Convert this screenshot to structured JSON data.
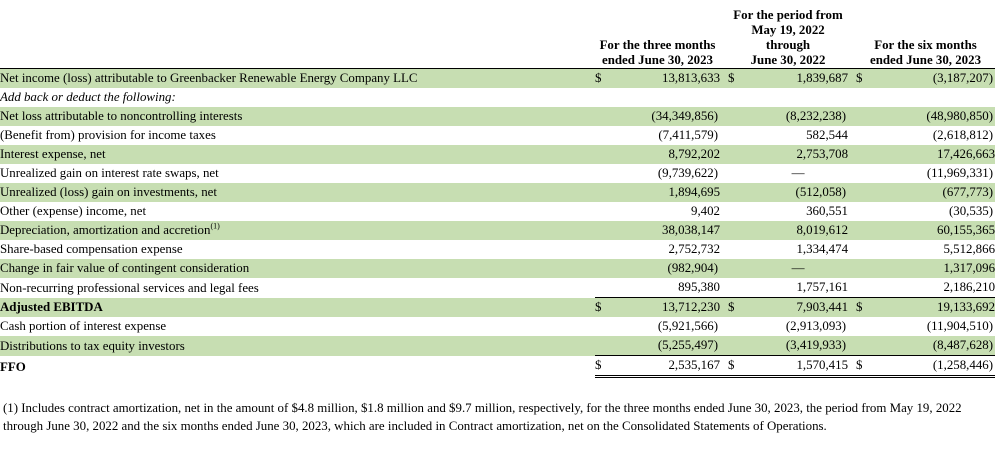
{
  "table": {
    "currency_symbol": "$",
    "columns": [
      {
        "label": "For the three months\nended June 30, 2023"
      },
      {
        "label": "For the period from\nMay 19, 2022 through\nJune 30, 2022"
      },
      {
        "label": "For the six months\nended June 30, 2023"
      }
    ],
    "rows": [
      {
        "label": "Net income (loss) attributable to Greenbacker Renewable Energy Company LLC",
        "dollar": true,
        "values": [
          "13,813,633",
          "1,839,687",
          "(3,187,207)"
        ]
      },
      {
        "label": "Add back or deduct the following:",
        "italic": true,
        "values": [
          "",
          "",
          ""
        ]
      },
      {
        "label": "Net loss attributable to noncontrolling interests",
        "values": [
          "(34,349,856)",
          "(8,232,238)",
          "(48,980,850)"
        ]
      },
      {
        "label": "(Benefit from) provision for income taxes",
        "values": [
          "(7,411,579)",
          "582,544",
          "(2,618,812)"
        ]
      },
      {
        "label": "Interest expense, net",
        "values": [
          "8,792,202",
          "2,753,708",
          "17,426,663"
        ]
      },
      {
        "label": "Unrealized gain on interest rate swaps, net",
        "values": [
          "(9,739,622)",
          "—",
          "(11,969,331)"
        ]
      },
      {
        "label": "Unrealized (loss) gain on investments, net",
        "values": [
          "1,894,695",
          "(512,058)",
          "(677,773)"
        ]
      },
      {
        "label": "Other (expense) income, net",
        "values": [
          "9,402",
          "360,551",
          "(30,535)"
        ]
      },
      {
        "label": "Depreciation, amortization and accretion",
        "sup": "(1)",
        "values": [
          "38,038,147",
          "8,019,612",
          "60,155,365"
        ]
      },
      {
        "label": "Share-based compensation expense",
        "values": [
          "2,752,732",
          "1,334,474",
          "5,512,866"
        ]
      },
      {
        "label": "Change in fair value of contingent consideration",
        "values": [
          "(982,904)",
          "—",
          "1,317,096"
        ]
      },
      {
        "label": "Non-recurring professional services and legal fees",
        "border_bottom": true,
        "values": [
          "895,380",
          "1,757,161",
          "2,186,210"
        ]
      },
      {
        "label": "Adjusted EBITDA",
        "bold": true,
        "dollar": true,
        "values": [
          "13,712,230",
          "7,903,441",
          "19,133,692"
        ]
      },
      {
        "label": "Cash portion of interest expense",
        "values": [
          "(5,921,566)",
          "(2,913,093)",
          "(11,904,510)"
        ]
      },
      {
        "label": "Distributions to tax equity investors",
        "border_bottom": true,
        "values": [
          "(5,255,497)",
          "(3,419,933)",
          "(8,487,628)"
        ]
      },
      {
        "label": "FFO",
        "bold": true,
        "dollar": true,
        "double_bottom": true,
        "values": [
          "2,535,167",
          "1,570,415",
          "(1,258,446)"
        ]
      }
    ]
  },
  "footnote": "(1) Includes contract amortization, net in the amount of $4.8 million, $1.8 million and $9.7 million, respectively,  for the three months ended June 30, 2023, the period from May 19, 2022 through June 30, 2022 and the six months ended June 30, 2023, which are included in Contract amortization, net on the Consolidated Statements of Operations.",
  "colors": {
    "row_shade": "#c7deb2",
    "border": "#000000"
  }
}
